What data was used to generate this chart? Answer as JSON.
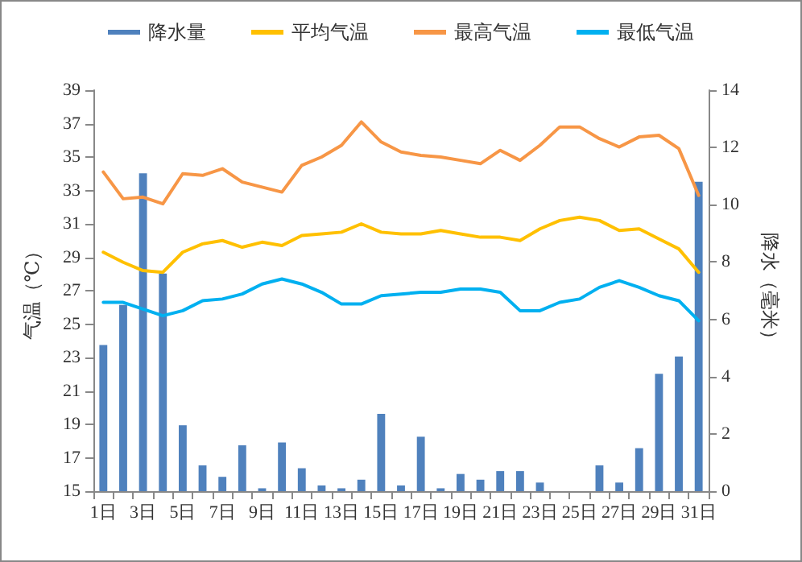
{
  "chart_data": {
    "type": "line",
    "categories": [
      "1日",
      null,
      "3日",
      null,
      "5日",
      null,
      "7日",
      null,
      "9日",
      null,
      "11日",
      null,
      "13日",
      null,
      "15日",
      null,
      "17日",
      null,
      "19日",
      null,
      "21日",
      null,
      "23日",
      null,
      "25日",
      null,
      "27日",
      null,
      "29日",
      null,
      "31日"
    ],
    "series": [
      {
        "name": "降水量",
        "type": "bar",
        "axis": "y2",
        "color": "#4f81bd",
        "values": [
          5.1,
          6.5,
          11.1,
          7.6,
          2.3,
          0.9,
          0.5,
          1.6,
          0.1,
          1.7,
          0.8,
          0.2,
          0.1,
          0.4,
          2.7,
          0.2,
          1.9,
          0.1,
          0.6,
          0.4,
          0.7,
          0.7,
          0.3,
          0,
          0,
          0.9,
          0.3,
          1.5,
          4.1,
          4.7,
          10.8
        ]
      },
      {
        "name": "平均气温",
        "color": "#ffc000",
        "values": [
          29.3,
          28.7,
          28.2,
          28.1,
          29.3,
          29.8,
          30.0,
          29.6,
          29.9,
          29.7,
          30.3,
          30.4,
          30.5,
          31.0,
          30.5,
          30.4,
          30.4,
          30.6,
          30.4,
          30.2,
          30.2,
          30.0,
          30.7,
          31.2,
          31.4,
          31.2,
          30.6,
          30.7,
          30.1,
          29.5,
          28.1
        ]
      },
      {
        "name": "最高气温",
        "color": "#f79646",
        "values": [
          34.1,
          32.5,
          32.6,
          32.2,
          34.0,
          33.9,
          34.3,
          33.5,
          33.2,
          32.9,
          34.5,
          35.0,
          35.7,
          37.1,
          35.9,
          35.3,
          35.1,
          35.0,
          34.8,
          34.6,
          35.4,
          34.8,
          35.7,
          36.8,
          36.8,
          36.1,
          35.6,
          36.2,
          36.3,
          35.5,
          32.7
        ]
      },
      {
        "name": "最低气温",
        "color": "#00b0f0",
        "values": [
          26.3,
          26.3,
          25.9,
          25.5,
          25.8,
          26.4,
          26.5,
          26.8,
          27.4,
          27.7,
          27.4,
          26.9,
          26.2,
          26.2,
          26.7,
          26.8,
          26.9,
          26.9,
          27.1,
          27.1,
          26.9,
          25.8,
          25.8,
          26.3,
          26.5,
          27.2,
          27.6,
          27.2,
          26.7,
          26.4,
          25.2
        ]
      }
    ],
    "ylabel": "气温（℃）",
    "y2label": "降水（毫米）",
    "ylim": [
      15,
      39
    ],
    "yticks": [
      15,
      17,
      19,
      21,
      23,
      25,
      27,
      29,
      31,
      33,
      35,
      37,
      39
    ],
    "y2lim": [
      0,
      14
    ],
    "y2ticks": [
      0,
      2,
      4,
      6,
      8,
      10,
      12,
      14
    ],
    "legend": "top",
    "grid": false,
    "marker": "none",
    "line_style": "solid"
  }
}
